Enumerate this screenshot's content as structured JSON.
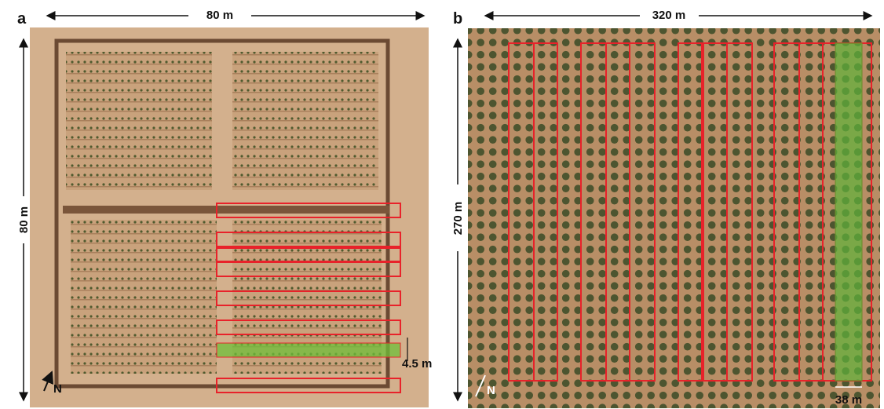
{
  "panel_a": {
    "label": "a",
    "width_label": "80 m",
    "height_label": "80 m",
    "strip_label": "4.5 m",
    "north_label": "N"
  },
  "panel_b": {
    "label": "b",
    "width_label": "320 m",
    "height_label": "270 m",
    "strip_label": "38 m",
    "north_label": "N"
  }
}
